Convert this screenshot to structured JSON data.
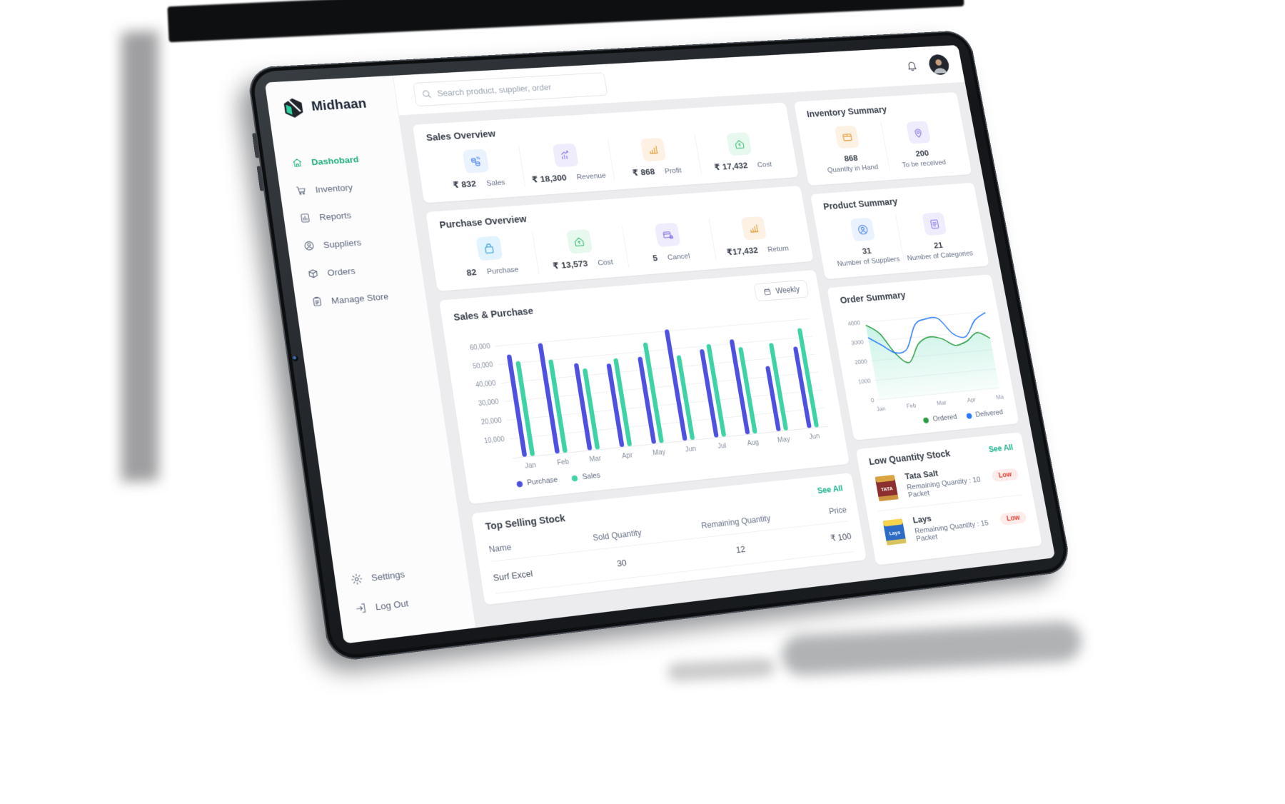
{
  "brand": {
    "name": "Midhaan"
  },
  "topbar": {
    "search_placeholder": "Search product, supplier, order"
  },
  "sidebar": {
    "items": [
      {
        "label": "Dashobard",
        "icon": "home",
        "active": true
      },
      {
        "label": "Inventory",
        "icon": "trolley",
        "active": false
      },
      {
        "label": "Reports",
        "icon": "report",
        "active": false
      },
      {
        "label": "Suppliers",
        "icon": "user-circle",
        "active": false
      },
      {
        "label": "Orders",
        "icon": "box",
        "active": false
      },
      {
        "label": "Manage Store",
        "icon": "clipboard",
        "active": false
      }
    ],
    "footer": [
      {
        "label": "Settings",
        "icon": "gear"
      },
      {
        "label": "Log Out",
        "icon": "logout"
      }
    ]
  },
  "cards": {
    "sales_overview": {
      "title": "Sales Overview",
      "stats": [
        {
          "icon": "coins",
          "tint": "blue",
          "value": "₹ 832",
          "label": "Sales"
        },
        {
          "icon": "trend",
          "tint": "purple",
          "value": "₹ 18,300",
          "label": "Revenue"
        },
        {
          "icon": "bars",
          "tint": "orange",
          "value": "₹ 868",
          "label": "Profit"
        },
        {
          "icon": "house-rupee",
          "tint": "green",
          "value": "₹ 17,432",
          "label": "Cost"
        }
      ]
    },
    "purchase_overview": {
      "title": "Purchase Overview",
      "stats": [
        {
          "icon": "bag",
          "tint": "sky",
          "value": "82",
          "label": "Purchase"
        },
        {
          "icon": "house-rupee",
          "tint": "green",
          "value": "₹ 13,573",
          "label": "Cost"
        },
        {
          "icon": "box-gear",
          "tint": "purple",
          "value": "5",
          "label": "Cancel"
        },
        {
          "icon": "bars",
          "tint": "orange",
          "value": "₹17,432",
          "label": "Return"
        }
      ]
    },
    "inventory_summary": {
      "title": "Inventory Summary",
      "stats": [
        {
          "icon": "package",
          "tint": "orange",
          "value": "868",
          "label": "Quantity in Hand"
        },
        {
          "icon": "pin",
          "tint": "purple",
          "value": "200",
          "label": "To be received"
        }
      ]
    },
    "product_summary": {
      "title": "Product Summary",
      "stats": [
        {
          "icon": "user-circle2",
          "tint": "blue",
          "value": "31",
          "label": "Number of Suppliers"
        },
        {
          "icon": "note",
          "tint": "purple",
          "value": "21",
          "label": "Number of Categories"
        }
      ]
    },
    "sales_purchase": {
      "title": "Sales & Purchase",
      "period": "Weekly"
    },
    "order_summary": {
      "title": "Order Summary"
    },
    "top_selling": {
      "title": "Top Selling Stock",
      "see_all": "See All",
      "columns": [
        "Name",
        "Sold Quantity",
        "Remaining Quantity",
        "Price"
      ],
      "rows": [
        [
          "Surf Excel",
          "30",
          "12",
          "₹ 100"
        ]
      ]
    },
    "low_quantity": {
      "title": "Low Quantity  Stock",
      "see_all": "See All",
      "items": [
        {
          "name": "Tata Salt",
          "remaining": "Remaining Quantity : 10 Packet",
          "badge": "Low",
          "thumb": {
            "bg": "#8c2f2f",
            "band": "#d9a441",
            "text": "TATA"
          }
        },
        {
          "name": "Lays",
          "remaining": "Remaining Quantity : 15 Packet",
          "badge": "Low",
          "thumb": {
            "bg": "#2d6bc4",
            "band": "#f7d44c",
            "text": "Lays"
          }
        }
      ]
    }
  },
  "chart_data": [
    {
      "id": "sales_purchase",
      "type": "bar",
      "title": "Sales & Purchase",
      "categories": [
        "Jan",
        "Feb",
        "Mar",
        "Apr",
        "May",
        "Jun",
        "Jul",
        "Aug",
        "May",
        "Jun"
      ],
      "series": [
        {
          "name": "Purchase",
          "color": "#4d50e0",
          "values": [
            55000,
            59500,
            47000,
            45500,
            47500,
            61000,
            48500,
            52500,
            36000,
            45500
          ]
        },
        {
          "name": "Sales",
          "color": "#3ed3a6",
          "values": [
            51000,
            50500,
            44000,
            48000,
            55000,
            46500,
            51000,
            48000,
            48500,
            55500
          ]
        }
      ],
      "ylim": [
        0,
        65000
      ],
      "yticks": [
        10000,
        20000,
        30000,
        40000,
        50000,
        60000
      ],
      "ytick_labels": [
        "10,000",
        "20,000",
        "30,000",
        "40,000",
        "50,000",
        "60,000"
      ],
      "grid": true,
      "legend_position": "bottom-left"
    },
    {
      "id": "order_summary",
      "type": "line",
      "title": "Order Summary",
      "x_labels": [
        "Jan",
        "Feb",
        "Mar",
        "Apr",
        "May"
      ],
      "series": [
        {
          "name": "Ordered",
          "color": "#2e9e44",
          "fill": true,
          "values": [
            3850,
            3350,
            2250,
            1750,
            2650,
            2950,
            2800,
            2400,
            2550,
            2950,
            2600
          ]
        },
        {
          "name": "Delivered",
          "color": "#2979ff",
          "fill": false,
          "values": [
            3200,
            2750,
            2300,
            2450,
            3650,
            3900,
            3850,
            3000,
            2800,
            3600,
            3950
          ]
        }
      ],
      "ylim": [
        0,
        4300
      ],
      "yticks": [
        0,
        1000,
        2000,
        3000,
        4000
      ],
      "ytick_labels": [
        "0",
        "1000",
        "2000",
        "3000",
        "4000"
      ],
      "grid": true,
      "legend_position": "bottom-right"
    }
  ],
  "colors": {
    "accent_green": "#17b08b",
    "nav_active": "#1fae7e",
    "badge_bg": "#feeceb",
    "badge_fg": "#da3e33",
    "tints": {
      "blue": {
        "bg": "#eaf2fe",
        "fg": "#5a8df0"
      },
      "sky": {
        "bg": "#e1f3fe",
        "fg": "#45a5e6"
      },
      "purple": {
        "bg": "#efecfe",
        "fg": "#8e7bea"
      },
      "orange": {
        "bg": "#fdf1e3",
        "fg": "#e2a03f"
      },
      "green": {
        "bg": "#e7f8ef",
        "fg": "#47be7d"
      }
    }
  }
}
